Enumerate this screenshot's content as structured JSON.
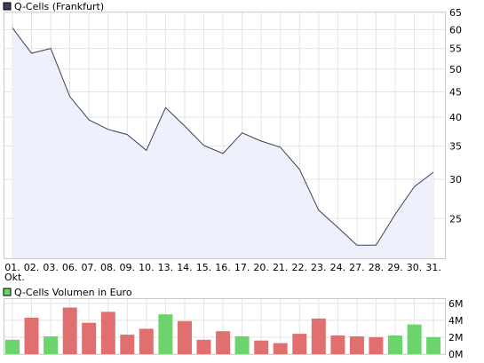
{
  "chart_data": [
    {
      "type": "line",
      "legend_label": "Q-Cells (Frankfurt)",
      "legend_color": "#3a3f5c",
      "line_color": "#3a3f5c",
      "fill_color": "#eef0fb",
      "x_categories": [
        "01.",
        "02.",
        "03.",
        "06.",
        "07.",
        "08.",
        "09.",
        "10.",
        "13.",
        "14.",
        "15.",
        "16.",
        "17.",
        "20.",
        "21.",
        "22.",
        "23.",
        "24.",
        "27.",
        "28.",
        "29.",
        "30.",
        "31."
      ],
      "x_sublabel": "Okt.",
      "values": [
        60.5,
        53.8,
        55.0,
        44.0,
        39.5,
        37.8,
        36.9,
        34.3,
        41.8,
        38.4,
        35.1,
        33.8,
        37.2,
        35.8,
        34.8,
        31.4,
        26.0,
        24.0,
        22.1,
        22.1,
        25.5,
        29.0,
        31.0
      ],
      "y_scale": "log",
      "y_ticks": [
        25,
        30,
        35,
        40,
        45,
        50,
        55,
        60,
        65
      ],
      "ylim": [
        20.8,
        65
      ],
      "grid": true
    },
    {
      "type": "bar",
      "legend_label": "Q-Cells Volumen in Euro",
      "legend_color": "#6cd46c",
      "up_color": "#6cd46c",
      "down_color": "#e07070",
      "values_millions": [
        1.7,
        4.3,
        2.1,
        5.5,
        3.7,
        5.0,
        2.3,
        3.0,
        4.7,
        3.9,
        1.7,
        2.7,
        2.1,
        1.6,
        1.3,
        2.4,
        4.2,
        2.2,
        2.1,
        2.0,
        2.2,
        3.5,
        2.0
      ],
      "direction": [
        "up",
        "down",
        "up",
        "down",
        "down",
        "down",
        "down",
        "down",
        "up",
        "down",
        "down",
        "down",
        "up",
        "down",
        "down",
        "down",
        "down",
        "down",
        "down",
        "down",
        "up",
        "up",
        "up"
      ],
      "y_tick_labels": [
        "0M",
        "2M",
        "4M",
        "6M"
      ],
      "y_tick_values": [
        0,
        2,
        4,
        6
      ],
      "ylim": [
        0,
        6.5
      ],
      "grid": true
    }
  ]
}
